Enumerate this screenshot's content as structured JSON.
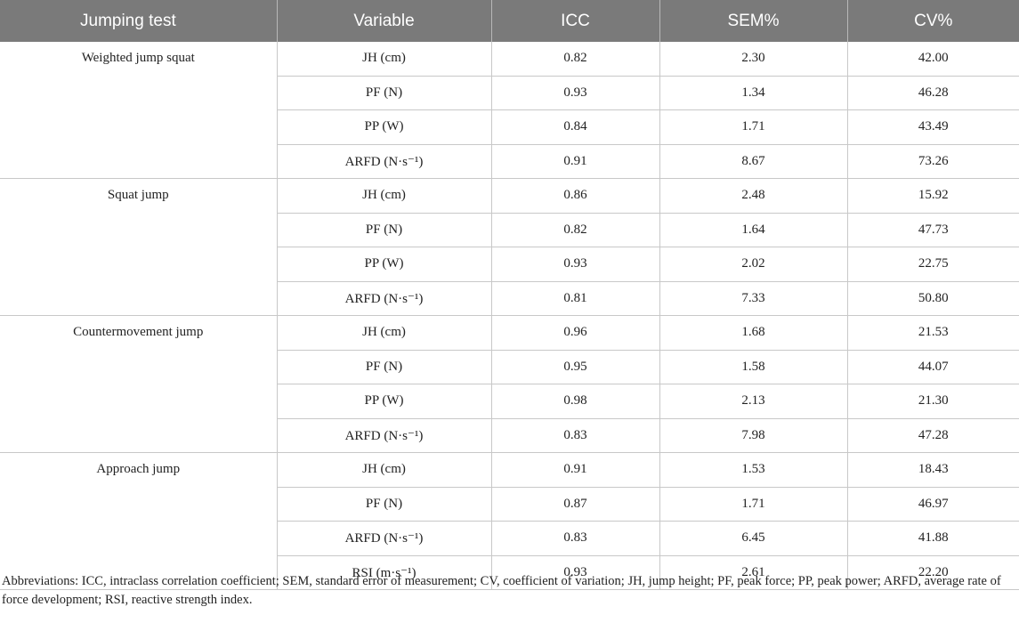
{
  "table": {
    "headers": [
      "Jumping test",
      "Variable",
      "ICC",
      "SEM%",
      "CV%"
    ],
    "groups": [
      {
        "test": "Weighted jump squat",
        "rows": [
          [
            "JH (cm)",
            "0.82",
            "2.30",
            "42.00"
          ],
          [
            "PF (N)",
            "0.93",
            "1.34",
            "46.28"
          ],
          [
            "PP (W)",
            "0.84",
            "1.71",
            "43.49"
          ],
          [
            "ARFD (N·s⁻¹)",
            "0.91",
            "8.67",
            "73.26"
          ]
        ]
      },
      {
        "test": "Squat jump",
        "rows": [
          [
            "JH (cm)",
            "0.86",
            "2.48",
            "15.92"
          ],
          [
            "PF (N)",
            "0.82",
            "1.64",
            "47.73"
          ],
          [
            "PP (W)",
            "0.93",
            "2.02",
            "22.75"
          ],
          [
            "ARFD (N·s⁻¹)",
            "0.81",
            "7.33",
            "50.80"
          ]
        ]
      },
      {
        "test": "Countermovement jump",
        "rows": [
          [
            "JH (cm)",
            "0.96",
            "1.68",
            "21.53"
          ],
          [
            "PF (N)",
            "0.95",
            "1.58",
            "44.07"
          ],
          [
            "PP (W)",
            "0.98",
            "2.13",
            "21.30"
          ],
          [
            "ARFD (N·s⁻¹)",
            "0.83",
            "7.98",
            "47.28"
          ]
        ]
      },
      {
        "test": "Approach jump",
        "rows": [
          [
            "JH (cm)",
            "0.91",
            "1.53",
            "18.43"
          ],
          [
            "PF (N)",
            "0.87",
            "1.71",
            "46.97"
          ],
          [
            "ARFD (N·s⁻¹)",
            "0.83",
            "6.45",
            "41.88"
          ],
          [
            "RSI (m·s⁻¹)",
            "0.93",
            "2.61",
            "22.20"
          ]
        ]
      }
    ]
  },
  "footnote": "Abbreviations: ICC, intraclass correlation coefficient; SEM, standard error of measurement; CV, coefficient of variation; JH, jump height; PF, peak force; PP, peak power; ARFD, average rate of force development; RSI, reactive strength index.",
  "colors": {
    "header_background": "#7a7a7a",
    "header_text": "#ffffff",
    "grid_line": "#c8c8c8",
    "body_text": "#222222"
  }
}
